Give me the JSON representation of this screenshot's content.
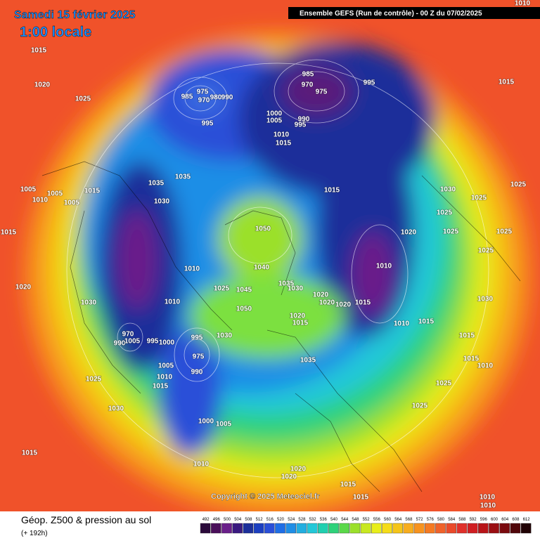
{
  "header": {
    "date": "Samedi 15 février 2025",
    "time": "1:00 locale",
    "run": "Ensemble GEFS  (Run de contrôle)  -  00 Z du 07/02/2025"
  },
  "map": {
    "copyright": "Copyright © 2025 Meteociel.fr",
    "isobar_labels": [
      "1010",
      "1015",
      "1020",
      "1025",
      "985",
      "975",
      "970",
      "980",
      "990",
      "995",
      "985",
      "970",
      "975",
      "995",
      "1015",
      "1000",
      "1005",
      "990",
      "995",
      "1010",
      "1015",
      "1035",
      "1035",
      "1030",
      "1005",
      "1005",
      "1015",
      "1010",
      "1005",
      "1015",
      "1020",
      "1030",
      "1010",
      "1010",
      "1050",
      "1040",
      "1045",
      "1025",
      "1050",
      "1035",
      "1030",
      "1020",
      "1020",
      "1020",
      "1015",
      "1010",
      "1015",
      "1030",
      "1025",
      "1025",
      "1025",
      "1025",
      "1025",
      "1020",
      "1030",
      "1010",
      "1015",
      "1015",
      "1015",
      "1010",
      "1025",
      "1025",
      "1035",
      "1020",
      "1015",
      "970",
      "990",
      "1005",
      "995",
      "1000",
      "1030",
      "995",
      "975",
      "990",
      "1005",
      "1010",
      "1015",
      "1025",
      "1030",
      "1000",
      "1005",
      "1010",
      "1015",
      "1020",
      "1020",
      "1015",
      "1015",
      "1010",
      "1010",
      "1025"
    ]
  },
  "footer": {
    "title": "Géop. Z500 & pression au sol",
    "lead": "(+ 192h)",
    "scale": [
      492,
      496,
      500,
      504,
      508,
      512,
      516,
      520,
      524,
      528,
      532,
      536,
      540,
      544,
      548,
      552,
      556,
      560,
      564,
      568,
      572,
      576,
      580,
      584,
      588,
      592,
      596,
      600,
      604,
      608,
      612
    ]
  }
}
